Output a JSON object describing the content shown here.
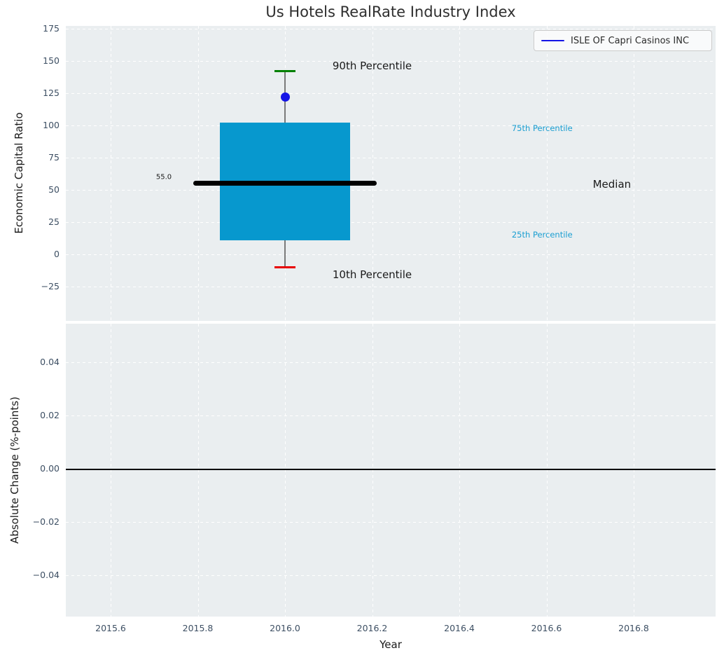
{
  "figure": {
    "title": "Us Hotels RealRate Industry Index",
    "plot_background": "#eaeef0",
    "tick_color": "#3d4f63",
    "text_color": "#1a1a1a"
  },
  "legend": {
    "label": "ISLE OF Capri Casinos INC",
    "line_color": "#1414e6",
    "position": "upper right"
  },
  "chart_data": [
    {
      "type": "box",
      "title": "Us Hotels RealRate Industry Index",
      "ylabel": "Economic Capital Ratio",
      "ylim": [
        -52,
        177
      ],
      "yticks": [
        175,
        150,
        125,
        100,
        75,
        50,
        25,
        0,
        -25
      ],
      "xticks": [
        2015.6,
        2015.8,
        2016.0,
        2016.2,
        2016.4,
        2016.6,
        2016.8
      ],
      "grid": true,
      "legend_entries": [
        "ISLE OF Capri Casinos INC"
      ],
      "box": {
        "x": 2016.0,
        "p10": -10,
        "p25": 11,
        "median": 55.0,
        "p75": 102,
        "p90": 142,
        "box_halfwidth": 0.15,
        "median_halfwidth": 0.21,
        "median_label": "55.0",
        "colors": {
          "box": "#0798ce",
          "median": "#000000",
          "p90_cap": "#008000",
          "p10_cap": "#e80000",
          "whisker": "#7a7a7a"
        }
      },
      "company_point": {
        "name": "ISLE OF Capri Casinos INC",
        "x": 2016.0,
        "y": 122,
        "color": "#1414e6"
      },
      "annotations": [
        {
          "text": "90th Percentile",
          "x": 2016.2,
          "y": 146,
          "color": "#1a1a1a",
          "size": 15,
          "align": "center"
        },
        {
          "text": "10th Percentile",
          "x": 2016.2,
          "y": -16,
          "color": "#1a1a1a",
          "size": 15,
          "align": "center"
        },
        {
          "text": "75th Percentile",
          "x": 2016.59,
          "y": 98,
          "color": "#1a9ed1",
          "size": 11.5,
          "align": "center"
        },
        {
          "text": "25th Percentile",
          "x": 2016.59,
          "y": 15,
          "color": "#1a9ed1",
          "size": 11.5,
          "align": "center"
        },
        {
          "text": "Median",
          "x": 2016.75,
          "y": 54.5,
          "color": "#1a1a1a",
          "size": 15,
          "align": "center"
        },
        {
          "text": "55.0",
          "x": 2015.74,
          "y": 60,
          "color": "#1a1a1a",
          "size": 10,
          "align": "right"
        }
      ]
    },
    {
      "type": "line",
      "ylabel": "Absolute Change (%-points)",
      "xlabel": "Year",
      "ylim": [
        -0.0555,
        0.0545
      ],
      "yticks": [
        0.04,
        0.02,
        0.0,
        -0.02,
        -0.04
      ],
      "xticks": [
        2015.6,
        2015.8,
        2016.0,
        2016.2,
        2016.4,
        2016.6,
        2016.8
      ],
      "zero_line": true,
      "series": []
    }
  ]
}
